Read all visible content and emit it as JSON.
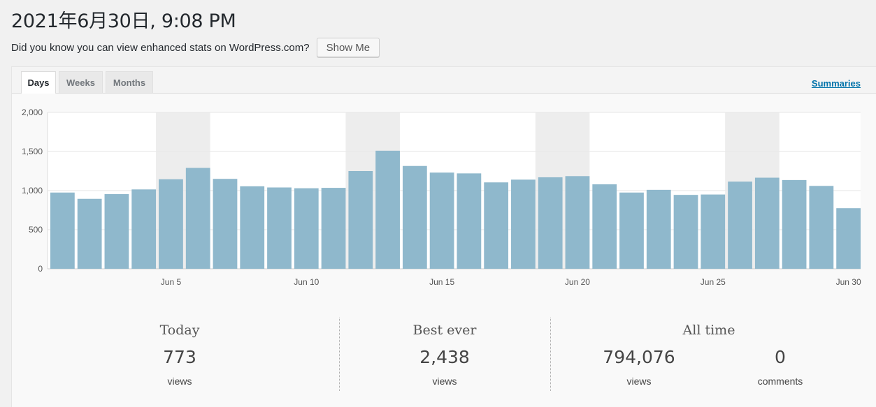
{
  "header": {
    "title": "2021年6月30日, 9:08 PM",
    "notice_text": "Did you know you can view enhanced stats on WordPress.com?",
    "show_me_label": "Show Me"
  },
  "tabs": [
    {
      "label": "Days",
      "active": true
    },
    {
      "label": "Weeks",
      "active": false
    },
    {
      "label": "Months",
      "active": false
    }
  ],
  "summaries_label": "Summaries",
  "colors": {
    "bar": "#8fb8cc",
    "weekend_band": "#ededed",
    "grid": "#e6e6e6",
    "link": "#0073aa"
  },
  "chart_data": {
    "type": "bar",
    "title": "",
    "xlabel": "",
    "ylabel": "",
    "ylim": [
      0,
      2000
    ],
    "yticks": [
      "0",
      "500",
      "1,000",
      "1,500",
      "2,000"
    ],
    "grid": true,
    "categories": [
      "Jun 1",
      "Jun 2",
      "Jun 3",
      "Jun 4",
      "Jun 5",
      "Jun 6",
      "Jun 7",
      "Jun 8",
      "Jun 9",
      "Jun 10",
      "Jun 11",
      "Jun 12",
      "Jun 13",
      "Jun 14",
      "Jun 15",
      "Jun 16",
      "Jun 17",
      "Jun 18",
      "Jun 19",
      "Jun 20",
      "Jun 21",
      "Jun 22",
      "Jun 23",
      "Jun 24",
      "Jun 25",
      "Jun 26",
      "Jun 27",
      "Jun 28",
      "Jun 29",
      "Jun 30"
    ],
    "xtick_labels": [
      {
        "index": 4,
        "label": "Jun 5"
      },
      {
        "index": 9,
        "label": "Jun 10"
      },
      {
        "index": 14,
        "label": "Jun 15"
      },
      {
        "index": 19,
        "label": "Jun 20"
      },
      {
        "index": 24,
        "label": "Jun 25"
      },
      {
        "index": 29,
        "label": "Jun 30"
      }
    ],
    "weekend_bands": [
      [
        4,
        5
      ],
      [
        11,
        12
      ],
      [
        18,
        19
      ],
      [
        25,
        26
      ]
    ],
    "values": [
      975,
      895,
      955,
      1015,
      1145,
      1290,
      1150,
      1055,
      1040,
      1030,
      1035,
      1250,
      1510,
      1315,
      1230,
      1220,
      1105,
      1140,
      1170,
      1185,
      1080,
      975,
      1010,
      945,
      950,
      1115,
      1165,
      1135,
      1060,
      775
    ]
  },
  "stats": {
    "today": {
      "heading": "Today",
      "value": "773",
      "unit": "views"
    },
    "best_ever": {
      "heading": "Best ever",
      "value": "2,438",
      "unit": "views"
    },
    "all_time": {
      "heading": "All time",
      "views_value": "794,076",
      "views_unit": "views",
      "comments_value": "0",
      "comments_unit": "comments"
    }
  }
}
